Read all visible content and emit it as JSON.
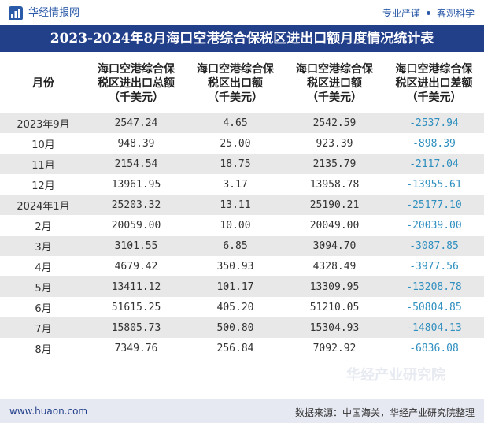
{
  "header": {
    "logo_text": "华经情报网",
    "slogan_left": "专业严谨",
    "slogan_right": "客观科学"
  },
  "title": "2023-2024年8月海口空港综合保税区进出口额月度情况统计表",
  "table": {
    "columns": [
      "月份",
      "海口空港综合保\n税区进出口总额\n（千美元）",
      "海口空港综合保\n税区出口额\n（千美元）",
      "海口空港综合保\n税区进口额\n（千美元）",
      "海口空港综合保\n税区进出口差额\n（千美元）"
    ],
    "rows": [
      {
        "month": "2023年9月",
        "total": "2547.24",
        "export": "4.65",
        "import": "2542.59",
        "balance": "-2537.94"
      },
      {
        "month": "10月",
        "total": "948.39",
        "export": "25.00",
        "import": "923.39",
        "balance": "-898.39"
      },
      {
        "month": "11月",
        "total": "2154.54",
        "export": "18.75",
        "import": "2135.79",
        "balance": "-2117.04"
      },
      {
        "month": "12月",
        "total": "13961.95",
        "export": "3.17",
        "import": "13958.78",
        "balance": "-13955.61"
      },
      {
        "month": "2024年1月",
        "total": "25203.32",
        "export": "13.11",
        "import": "25190.21",
        "balance": "-25177.10"
      },
      {
        "month": "2月",
        "total": "20059.00",
        "export": "10.00",
        "import": "20049.00",
        "balance": "-20039.00"
      },
      {
        "month": "3月",
        "total": "3101.55",
        "export": "6.85",
        "import": "3094.70",
        "balance": "-3087.85"
      },
      {
        "month": "4月",
        "total": "4679.42",
        "export": "350.93",
        "import": "4328.49",
        "balance": "-3977.56"
      },
      {
        "month": "5月",
        "total": "13411.12",
        "export": "101.17",
        "import": "13309.95",
        "balance": "-13208.78"
      },
      {
        "month": "6月",
        "total": "51615.25",
        "export": "405.20",
        "import": "51210.05",
        "balance": "-50804.85"
      },
      {
        "month": "7月",
        "total": "15805.73",
        "export": "500.80",
        "import": "15304.93",
        "balance": "-14804.13"
      },
      {
        "month": "8月",
        "total": "7349.76",
        "export": "256.84",
        "import": "7092.92",
        "balance": "-6836.08"
      }
    ]
  },
  "footer": {
    "url": "www.huaon.com",
    "source": "数据来源：中国海关，华经产业研究院整理"
  },
  "watermark": "华经产业研究院",
  "colors": {
    "title_bg": "#223f8a",
    "negative_value": "#2f8fbf",
    "row_shade": "#e8e8e8"
  }
}
